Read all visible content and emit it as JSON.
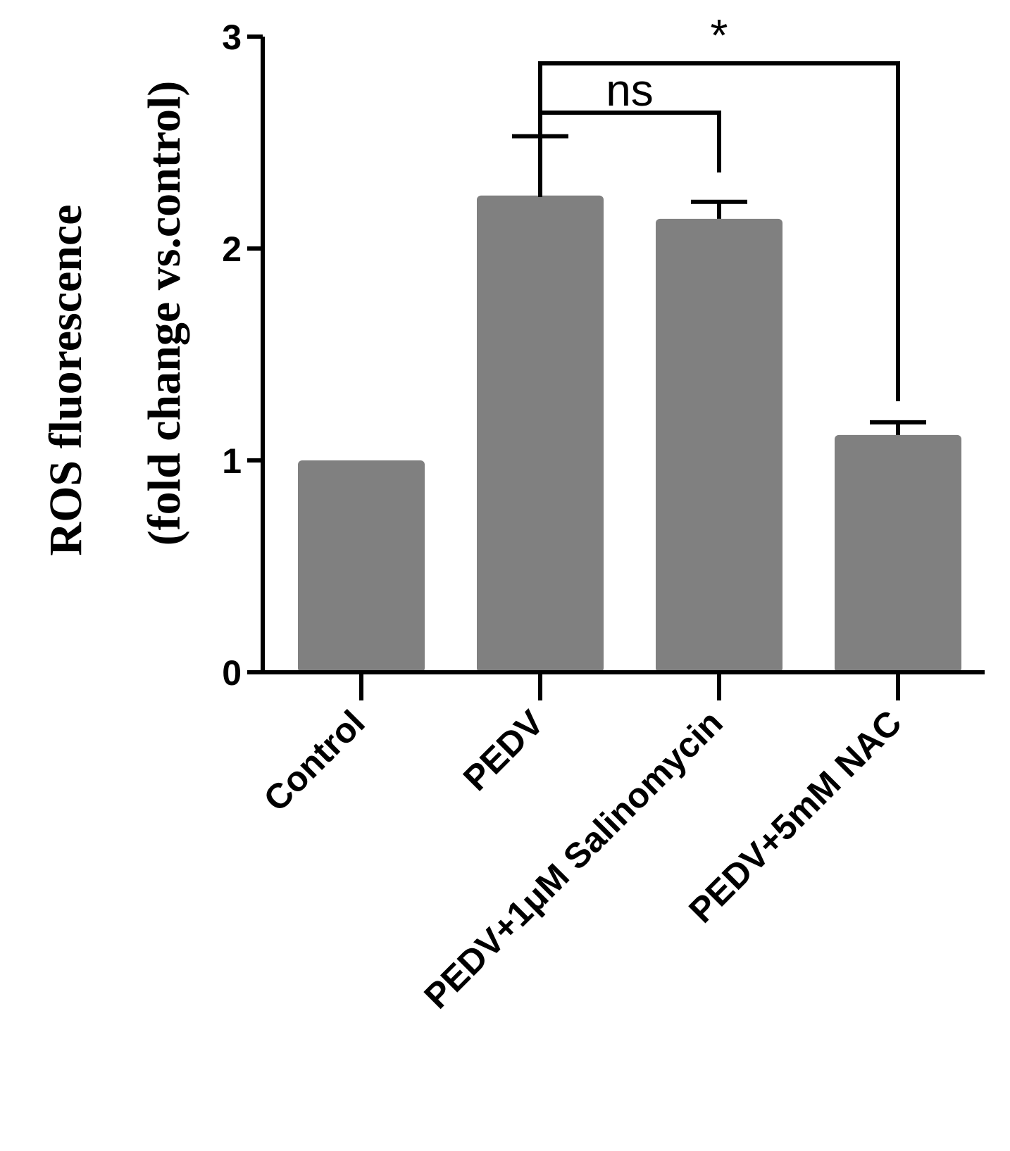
{
  "chart_data": {
    "type": "bar",
    "title": "",
    "xlabel": "",
    "ylabel_lines": [
      "ROS fluorescence",
      "(fold change vs.control)"
    ],
    "categories": [
      "Control",
      "PEDV",
      "PEDV+1μM Salinomycin",
      "PEDV+5mM NAC"
    ],
    "values": [
      1.0,
      2.25,
      2.14,
      1.12
    ],
    "error_upper": [
      0.0,
      0.28,
      0.08,
      0.06
    ],
    "ylim": [
      0,
      3
    ],
    "yticks": [
      "0",
      "1",
      "2",
      "3"
    ],
    "grid": false,
    "bar_color": "#808080",
    "comparisons": [
      {
        "from": "PEDV",
        "to": "PEDV+1μM Salinomycin",
        "label": "ns"
      },
      {
        "from": "PEDV",
        "to": "PEDV+5mM NAC",
        "label": "*"
      }
    ]
  }
}
